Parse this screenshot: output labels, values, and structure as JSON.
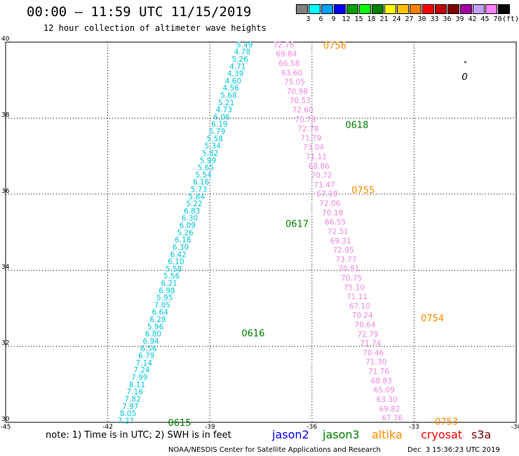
{
  "header": {
    "title": "00:00 – 11:59 UTC 11/15/2019",
    "subtitle": "12 hour collection of altimeter wave heights"
  },
  "colorbar": {
    "colors": [
      "#808080",
      "#00ffff",
      "#00a0ff",
      "#0000ff",
      "#00a000",
      "#00ff00",
      "#008000",
      "#ffff00",
      "#ffc000",
      "#ff8000",
      "#ff0000",
      "#c00000",
      "#800000",
      "#a000a0",
      "#c0a0ff",
      "#ff80ff",
      "#000000"
    ],
    "labels": [
      "3",
      "6",
      "9",
      "12",
      "15",
      "18",
      "21",
      "24",
      "27",
      "30",
      "33",
      "36",
      "39",
      "42",
      "45",
      "70"
    ],
    "unit": "(ft)"
  },
  "chart_data": {
    "type": "scatter",
    "xlim": [
      -45,
      -30
    ],
    "ylim": [
      30,
      40
    ],
    "x_ticks": [
      "-45",
      "-42",
      "-39",
      "-36",
      "-33",
      "-30"
    ],
    "y_ticks": [
      "30",
      "32",
      "34",
      "36",
      "38",
      "40"
    ],
    "grid": true,
    "series": [
      {
        "name": "jason3",
        "color": "#00c8d8",
        "start": [
          -41.47,
          30.03
        ],
        "end": [
          -37.98,
          39.92
        ],
        "values": [
          "7.27",
          "8.05",
          "7.97",
          "7.82",
          "7.16",
          "8.11",
          "7.99",
          "7.24",
          "7.14",
          "6.79",
          "6.56",
          "6.94",
          "6.80",
          "5.96",
          "6.28",
          "6.64",
          "7.05",
          "5.95",
          "6.98",
          "6.21",
          "5.56",
          "5.58",
          "6.10",
          "6.42",
          "6.30",
          "6.18",
          "5.26",
          "6.09",
          "6.30",
          "6.83",
          "5.22",
          "5.84",
          "5.73",
          "6.16",
          "5.54",
          "5.65",
          "5.99",
          "5.82",
          "5.34",
          "5.58",
          "5.79",
          "6.19",
          "6.06",
          "4.73",
          "5.21",
          "5.68",
          "4.56",
          "4.60",
          "4.39",
          "4.71",
          "5.26",
          "4.78",
          "5.49"
        ]
      },
      {
        "name": "jason3 time labels",
        "labels": [
          {
            "text": "0615",
            "x": -40.23,
            "y": 30.0
          },
          {
            "text": "0616",
            "x": -38.07,
            "y": 32.35
          },
          {
            "text": "0617",
            "x": -36.78,
            "y": 35.23
          },
          {
            "text": "0618",
            "x": -35.02,
            "y": 37.83
          }
        ]
      },
      {
        "name": "altika",
        "color": "#ee88e0",
        "start": [
          -36.83,
          39.92
        ],
        "end": [
          -33.64,
          30.1
        ],
        "values": [
          "72.76",
          "69.84",
          "66.58",
          "63.60",
          "75.05",
          "70.98",
          "70.53",
          "72.60",
          "70.79",
          "72.78",
          "71.79",
          "73.04",
          "71.11",
          "68.86",
          "70.72",
          "71.47",
          "67.18",
          "72.06",
          "70.18",
          "66.55",
          "72.51",
          "69.31",
          "72.95",
          "73.77",
          "70.81",
          "70.75",
          "75.10",
          "71.11",
          "67.10",
          "70.24",
          "70.64",
          "72.79",
          "71.74",
          "70.46",
          "71.30",
          "71.76",
          "68.83",
          "65.09",
          "63.30",
          "69.82",
          "67.76"
        ]
      },
      {
        "name": "altika time labels",
        "labels": [
          {
            "text": "0756",
            "x": -35.67,
            "y": 39.92
          },
          {
            "text": "0755",
            "x": -34.84,
            "y": 36.12
          },
          {
            "text": "0754",
            "x": -32.8,
            "y": 32.75
          },
          {
            "text": "0753",
            "x": -32.39,
            "y": 30.03
          }
        ]
      }
    ],
    "annotations": [
      "0",
      "°"
    ]
  },
  "legend": {
    "items": [
      {
        "name": "jason2",
        "color": "#0000ff"
      },
      {
        "name": "jason3",
        "color": "#008000"
      },
      {
        "name": "altika",
        "color": "#ff8c00"
      },
      {
        "name": "cryosat",
        "color": "#ff0000"
      },
      {
        "name": "s3a",
        "color": "#800000"
      }
    ]
  },
  "footer": {
    "note": "note: 1) Time is in UTC; 2) SWH is in feet",
    "credit": "NOAA/NESDIS Center for Satellite Applications and Research",
    "timestamp": "Dec  3 15:36:23 UTC 2019"
  }
}
